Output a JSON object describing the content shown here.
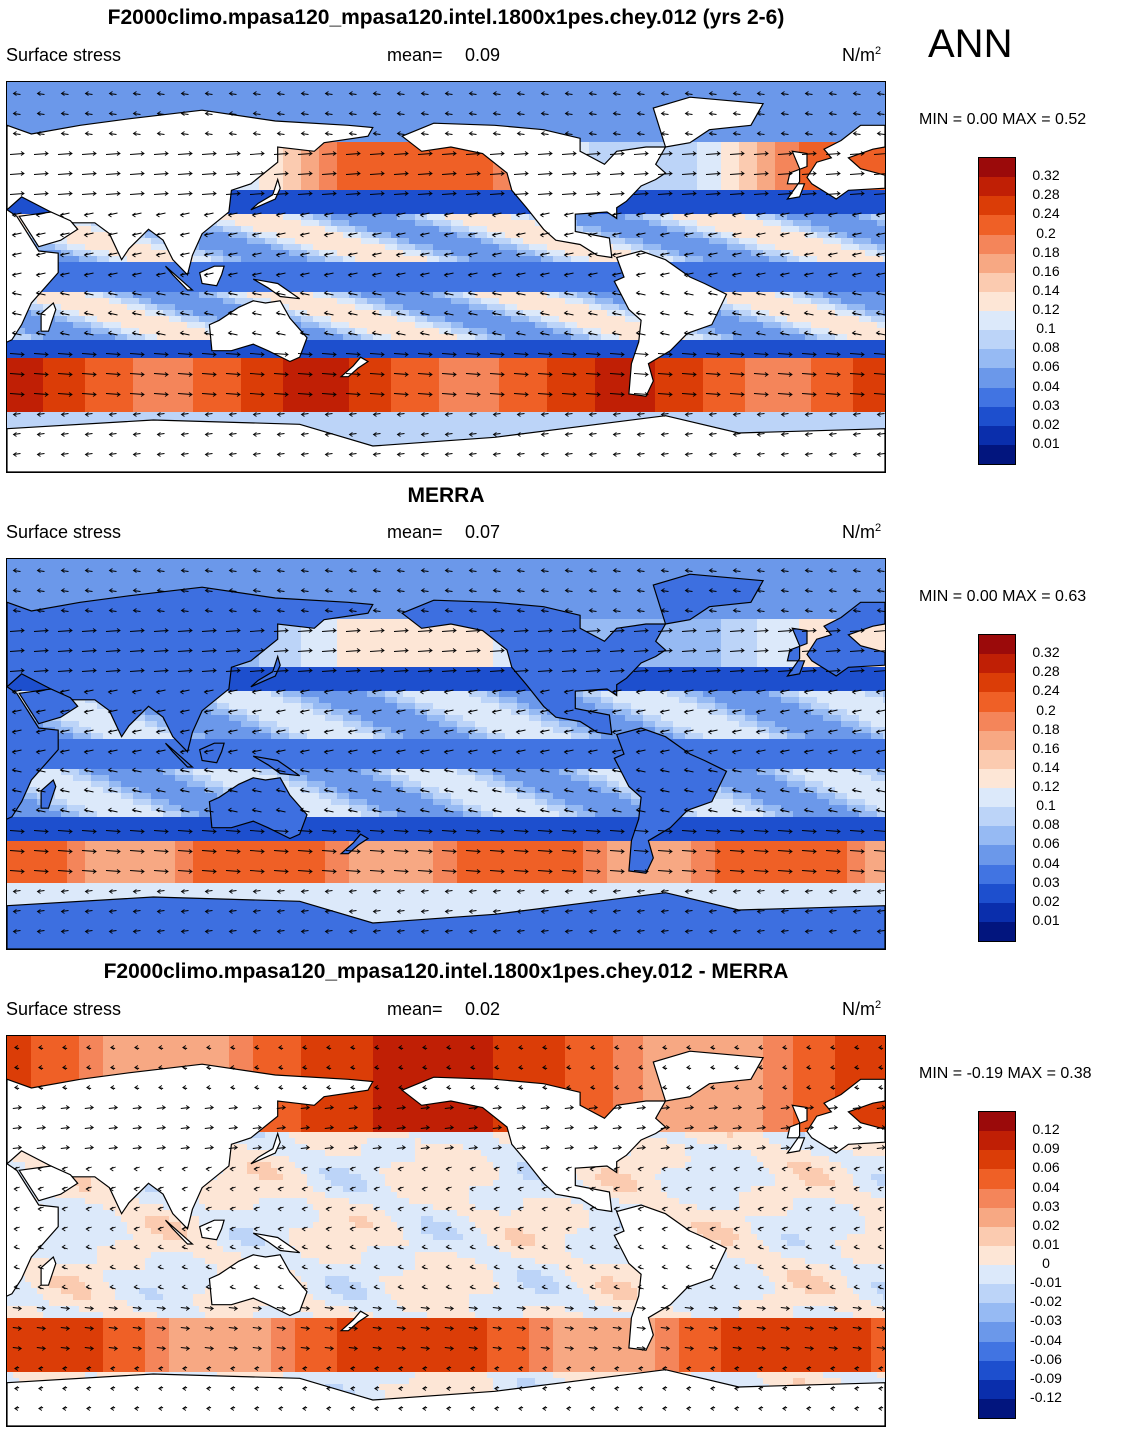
{
  "season": "ANN",
  "panels": [
    {
      "title": "F2000climo.mpasa120_mpasa120.intel.1800x1pes.chey.012 (yrs 2-6)",
      "left_label": "Surface stress",
      "mean_label": "mean=",
      "mean_value": "0.09",
      "units": "N/m",
      "units_sup": "2",
      "minmax": "MIN =   0.00 MAX =   0.52",
      "pattern": "model",
      "levels": [
        "0.32",
        "0.28",
        "0.24",
        "0.2",
        "0.18",
        "0.16",
        "0.14",
        "0.12",
        "0.1",
        "0.08",
        "0.06",
        "0.04",
        "0.03",
        "0.02",
        "0.01"
      ],
      "colors": [
        "#9b0a0a",
        "#c01f05",
        "#db3d07",
        "#ef6026",
        "#f4855a",
        "#f7a883",
        "#fbcbb0",
        "#fde6d6",
        "#dce9fa",
        "#bcd4f8",
        "#96baf3",
        "#6b98ea",
        "#4174e2",
        "#1d4fce",
        "#0a2eac",
        "#02157e"
      ]
    },
    {
      "title": "MERRA",
      "left_label": "Surface stress",
      "mean_label": "mean=",
      "mean_value": "0.07",
      "units": "N/m",
      "units_sup": "2",
      "minmax": "MIN =   0.00 MAX =   0.63",
      "pattern": "obs",
      "levels": [
        "0.32",
        "0.28",
        "0.24",
        "0.2",
        "0.18",
        "0.16",
        "0.14",
        "0.12",
        "0.1",
        "0.08",
        "0.06",
        "0.04",
        "0.03",
        "0.02",
        "0.01"
      ],
      "colors": [
        "#9b0a0a",
        "#c01f05",
        "#db3d07",
        "#ef6026",
        "#f4855a",
        "#f7a883",
        "#fbcbb0",
        "#fde6d6",
        "#dce9fa",
        "#bcd4f8",
        "#96baf3",
        "#6b98ea",
        "#4174e2",
        "#1d4fce",
        "#0a2eac",
        "#02157e"
      ]
    },
    {
      "title": "F2000climo.mpasa120_mpasa120.intel.1800x1pes.chey.012 - MERRA",
      "left_label": "Surface stress",
      "mean_label": "mean=",
      "mean_value": "0.02",
      "units": "N/m",
      "units_sup": "2",
      "minmax": "MIN =  -0.19 MAX =   0.38",
      "pattern": "diff",
      "levels": [
        "0.12",
        "0.09",
        "0.06",
        "0.04",
        "0.03",
        "0.02",
        "0.01",
        "0",
        "-0.01",
        "-0.02",
        "-0.03",
        "-0.04",
        "-0.06",
        "-0.09",
        "-0.12"
      ],
      "colors": [
        "#9b0a0a",
        "#c01f05",
        "#db3d07",
        "#ef6026",
        "#f4855a",
        "#f7a883",
        "#fbcbb0",
        "#fde6d6",
        "#dce9fa",
        "#bcd4f8",
        "#96baf3",
        "#6b98ea",
        "#4174e2",
        "#1d4fce",
        "#0a2eac",
        "#02157e"
      ]
    }
  ]
}
